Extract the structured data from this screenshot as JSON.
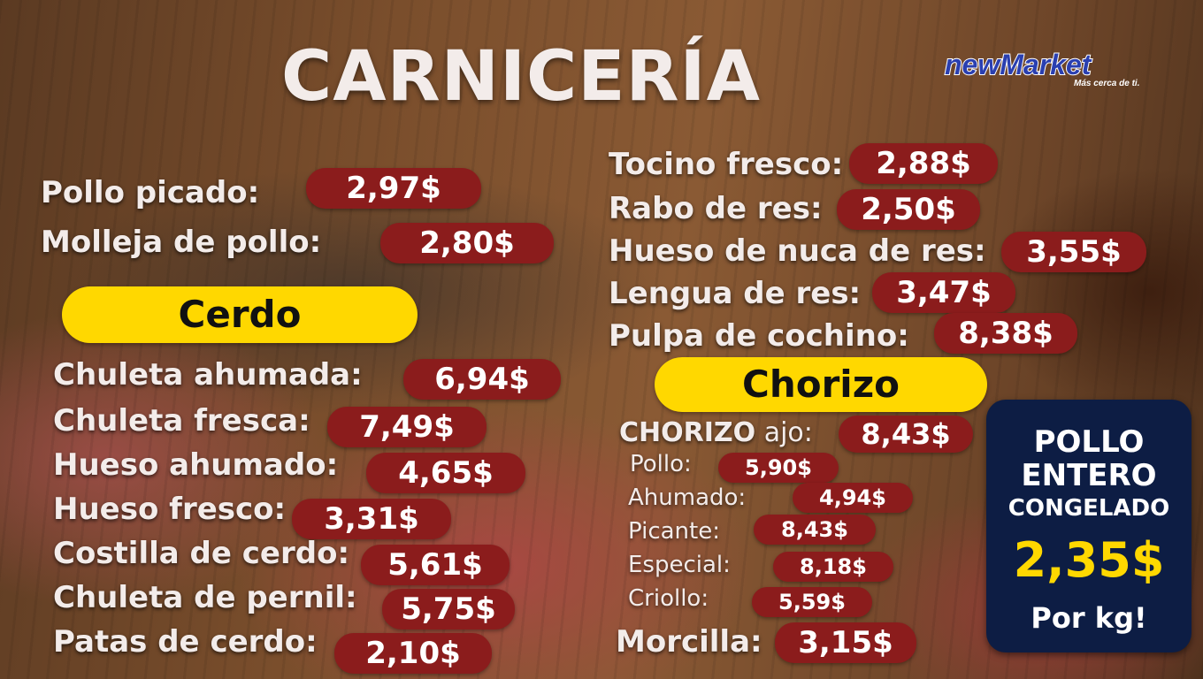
{
  "title": "CARNICERÍA",
  "logo": {
    "brand": "newMarket",
    "tagline": "Más cerca de ti."
  },
  "pollo": [
    {
      "label": "Pollo picado:",
      "price": "2,97$"
    },
    {
      "label": "Molleja de pollo:",
      "price": "2,80$"
    }
  ],
  "cerdo": {
    "heading": "Cerdo",
    "items": [
      {
        "label": "Chuleta ahumada:",
        "price": "6,94$"
      },
      {
        "label": "Chuleta fresca:",
        "price": "7,49$"
      },
      {
        "label": "Hueso ahumado:",
        "price": "4,65$"
      },
      {
        "label": "Hueso fresco:",
        "price": "3,31$"
      },
      {
        "label": "Costilla de cerdo:",
        "price": "5,61$"
      },
      {
        "label": "Chuleta de pernil:",
        "price": "5,75$"
      },
      {
        "label": "Patas de cerdo:",
        "price": "2,10$"
      }
    ]
  },
  "res": [
    {
      "label": "Tocino fresco:",
      "price": "2,88$"
    },
    {
      "label": "Rabo de res:",
      "price": "2,50$"
    },
    {
      "label": "Hueso de nuca de res:",
      "price": "3,55$"
    },
    {
      "label": "Lengua de res:",
      "price": "3,47$"
    },
    {
      "label": "Pulpa de cochino:",
      "price": "8,38$"
    }
  ],
  "chorizo": {
    "heading": "Chorizo",
    "first": {
      "label_bold": "CHORIZO",
      "label_rest": " ajo:",
      "price": "8,43$"
    },
    "items": [
      {
        "label": "Pollo:",
        "price": "5,90$"
      },
      {
        "label": "Ahumado:",
        "price": "4,94$"
      },
      {
        "label": "Picante:",
        "price": "8,43$"
      },
      {
        "label": "Especial:",
        "price": "8,18$"
      },
      {
        "label": "Criollo:",
        "price": "5,59$"
      }
    ],
    "morcilla": {
      "label": "Morcilla:",
      "price": "3,15$"
    }
  },
  "promo": {
    "line1": "POLLO",
    "line2": "ENTERO",
    "line3": "CONGELADO",
    "price": "2,35$",
    "unit": "Por kg!"
  },
  "colors": {
    "price_bg": "#8b1c1c",
    "pill": "#ffd800",
    "promo_bg": "#0d1d44",
    "promo_price": "#ffd800"
  }
}
